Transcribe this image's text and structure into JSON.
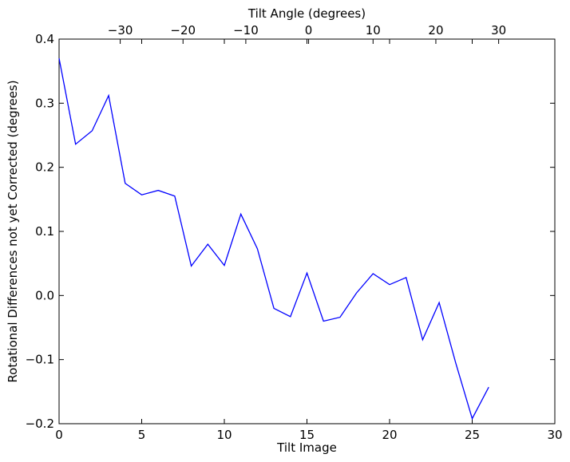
{
  "chart_data": {
    "type": "line",
    "xlabel": "Tilt Image",
    "ylabel": "Rotational Differences not yet Corrected (degrees)",
    "top_xlabel": "Tilt Angle (degrees)",
    "xlim": [
      0,
      30
    ],
    "ylim": [
      -0.2,
      0.4
    ],
    "x_ticks": [
      "0",
      "5",
      "10",
      "15",
      "20",
      "25",
      "30"
    ],
    "y_ticks": [
      "0.4",
      "0.3",
      "0.2",
      "0.1",
      "0.0",
      "−0.1",
      "−0.2"
    ],
    "top_ticks": [
      "−30",
      "−20",
      "−10",
      "0",
      "10",
      "20",
      "30"
    ],
    "top_tick_x_image": [
      3.7,
      7.5,
      11.3,
      15.1,
      19.0,
      22.8,
      26.6
    ],
    "grid": false,
    "series_color": "#0000ff",
    "series": [
      {
        "x": [
          0,
          1,
          2,
          3,
          4,
          5,
          6,
          7,
          8,
          9,
          10,
          11,
          12,
          13,
          14,
          15,
          16,
          17,
          18,
          19,
          20,
          21,
          22,
          23,
          24,
          25,
          26
        ],
        "values": [
          0.37,
          0.236,
          0.257,
          0.312,
          0.175,
          0.157,
          0.164,
          0.155,
          0.046,
          0.08,
          0.047,
          0.127,
          0.073,
          -0.02,
          -0.033,
          0.035,
          -0.04,
          -0.034,
          0.004,
          0.034,
          0.017,
          0.028,
          -0.069,
          -0.011,
          -0.105,
          -0.192,
          -0.143
        ]
      }
    ]
  }
}
